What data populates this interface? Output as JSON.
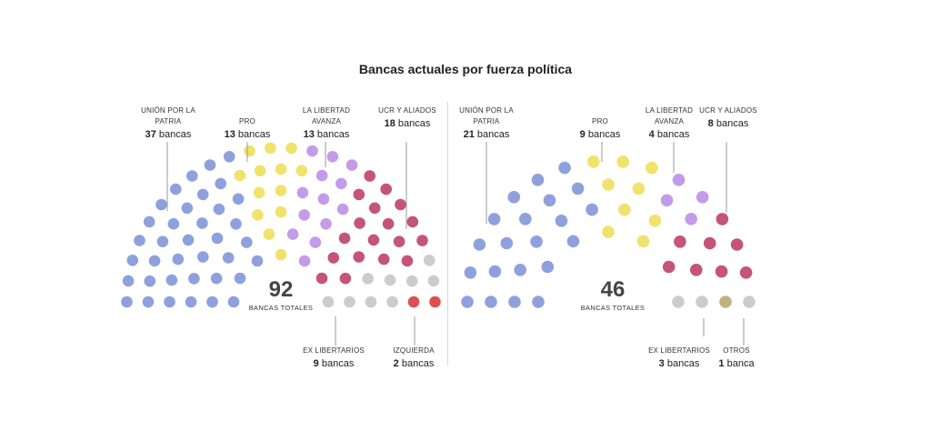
{
  "title": "Bancas actuales por fuerza política",
  "chart_data": [
    {
      "type": "parliament",
      "total": 92,
      "total_caption": "BANCAS TOTALES",
      "unit": "bancas",
      "series": [
        {
          "name": "UNIÓN POR LA PATRIA",
          "value": 37,
          "color": "#8ea1dd"
        },
        {
          "name": "PRO",
          "value": 13,
          "color": "#f0e26a"
        },
        {
          "name": "LA LIBERTAD AVANZA",
          "value": 13,
          "color": "#c49be8"
        },
        {
          "name": "UCR Y ALIADOS",
          "value": 18,
          "color": "#c45478"
        },
        {
          "name": "EX LIBERTARIOS",
          "value": 9,
          "color": "#cccccc"
        },
        {
          "name": "IZQUIERDA",
          "value": 2,
          "color": "#dd5050"
        }
      ]
    },
    {
      "type": "parliament",
      "total": 46,
      "total_caption": "BANCAS TOTALES",
      "series": [
        {
          "name": "UNIÓN POR LA PATRIA",
          "value": 21,
          "color": "#8ea1dd"
        },
        {
          "name": "PRO",
          "value": 9,
          "color": "#f0e26a"
        },
        {
          "name": "LA LIBERTAD AVANZA",
          "value": 4,
          "color": "#c49be8"
        },
        {
          "name": "UCR Y ALIADOS",
          "value": 8,
          "color": "#c45478"
        },
        {
          "name": "EX LIBERTARIOS",
          "value": 3,
          "color": "#cccccc"
        },
        {
          "name": "OTROS",
          "value": 1,
          "color": "#c2b083"
        }
      ]
    }
  ],
  "labels": {
    "left": [
      {
        "name": "UNIÓN POR LA PATRIA",
        "count": "37",
        "unit": "bancas"
      },
      {
        "name": "PRO",
        "count": "13",
        "unit": "bancas"
      },
      {
        "name": "LA LIBERTAD AVANZA",
        "count": "13",
        "unit": "bancas"
      },
      {
        "name": "UCR Y ALIADOS",
        "count": "18",
        "unit": "bancas"
      },
      {
        "name": "EX LIBERTARIOS",
        "count": "9",
        "unit": "bancas"
      },
      {
        "name": "IZQUIERDA",
        "count": "2",
        "unit": "bancas"
      }
    ],
    "right": [
      {
        "name": "UNIÓN POR LA PATRIA",
        "count": "21",
        "unit": "bancas"
      },
      {
        "name": "PRO",
        "count": "9",
        "unit": "bancas"
      },
      {
        "name": "LA LIBERTAD AVANZA",
        "count": "4",
        "unit": "bancas"
      },
      {
        "name": "UCR Y ALIADOS",
        "count": "8",
        "unit": "bancas"
      },
      {
        "name": "EX LIBERTARIOS",
        "count": "3",
        "unit": "bancas"
      },
      {
        "name": "OTROS",
        "count": "1",
        "unit": "banca"
      }
    ]
  }
}
